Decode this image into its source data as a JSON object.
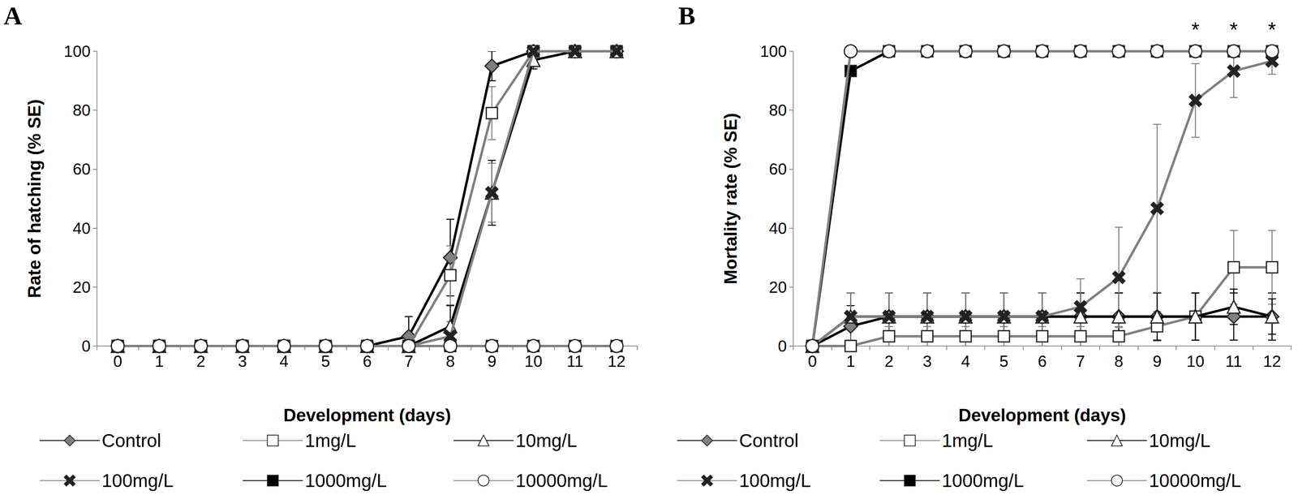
{
  "chart_data": [
    {
      "type": "line",
      "title": "A",
      "x_label": "Development (days)",
      "y_label": "Rate of hatching (% SE)",
      "categories": [
        "0",
        "1",
        "2",
        "3",
        "4",
        "5",
        "6",
        "7",
        "8",
        "9",
        "10",
        "11",
        "12"
      ],
      "ylim": [
        0,
        100
      ],
      "yticks": [
        0,
        20,
        40,
        60,
        80,
        100
      ],
      "grid": false,
      "series": [
        {
          "name": "Control",
          "color": "#000000",
          "marker": "diamond",
          "values": [
            0,
            0,
            0,
            0,
            0,
            0,
            0,
            3.3,
            30,
            95,
            100,
            100,
            100
          ],
          "errors": [
            0,
            0,
            0,
            0,
            0,
            0,
            0,
            6.7,
            13,
            5,
            0,
            0,
            0
          ]
        },
        {
          "name": "1mg/L",
          "color": "#808080",
          "marker": "square-open",
          "values": [
            0,
            0,
            0,
            0,
            0,
            0,
            0,
            0,
            24,
            79,
            100,
            100,
            100
          ],
          "errors": [
            0,
            0,
            0,
            0,
            0,
            0,
            0,
            0,
            10,
            9,
            0,
            0,
            0
          ]
        },
        {
          "name": "10mg/L",
          "color": "#000000",
          "marker": "triangle-open",
          "values": [
            0,
            0,
            0,
            0,
            0,
            0,
            0,
            0,
            6.7,
            52,
            97,
            100,
            100
          ],
          "errors": [
            0,
            0,
            0,
            0,
            0,
            0,
            0,
            0,
            7,
            11,
            3,
            0,
            0
          ]
        },
        {
          "name": "100mg/L",
          "color": "#808080",
          "marker": "x",
          "values": [
            0,
            0,
            0,
            0,
            0,
            0,
            0,
            0,
            3.3,
            52,
            100,
            100,
            100
          ],
          "errors": [
            0,
            0,
            0,
            0,
            0,
            0,
            0,
            0,
            5,
            10,
            0,
            0,
            0
          ]
        },
        {
          "name": "1000mg/L",
          "color": "#000000",
          "marker": "square",
          "values": [
            0,
            0,
            0,
            0,
            0,
            0,
            0,
            0,
            0,
            0,
            0,
            0,
            0
          ],
          "errors": [
            0,
            0,
            0,
            0,
            0,
            0,
            0,
            0,
            0,
            0,
            0,
            0,
            0
          ]
        },
        {
          "name": "10000mg/L",
          "color": "#808080",
          "marker": "circle-open",
          "values": [
            0,
            0,
            0,
            0,
            0,
            0,
            0,
            0,
            0,
            0,
            0,
            0,
            0
          ],
          "errors": [
            0,
            0,
            0,
            0,
            0,
            0,
            0,
            0,
            0,
            0,
            0,
            0,
            0
          ]
        }
      ]
    },
    {
      "type": "line",
      "title": "B",
      "x_label": "Development (days)",
      "y_label": "Mortality rate (% SE)",
      "categories": [
        "0",
        "1",
        "2",
        "3",
        "4",
        "5",
        "6",
        "7",
        "8",
        "9",
        "10",
        "11",
        "12"
      ],
      "ylim": [
        0,
        100
      ],
      "yticks": [
        0,
        20,
        40,
        60,
        80,
        100
      ],
      "grid": false,
      "annotations": [
        {
          "x": "10",
          "text": "*"
        },
        {
          "x": "11",
          "text": "*"
        },
        {
          "x": "12",
          "text": "*"
        }
      ],
      "series": [
        {
          "name": "Control",
          "color": "#000000",
          "marker": "diamond",
          "values": [
            0,
            6.7,
            10,
            10,
            10,
            10,
            10,
            10,
            10,
            10,
            10,
            10,
            10
          ],
          "errors": [
            0,
            7,
            8,
            8,
            8,
            8,
            8,
            8,
            8,
            8,
            8,
            8,
            8
          ]
        },
        {
          "name": "1mg/L",
          "color": "#808080",
          "marker": "square-open",
          "values": [
            0,
            0,
            3.3,
            3.3,
            3.3,
            3.3,
            3.3,
            3.3,
            3.3,
            6.7,
            10,
            26.7,
            26.7
          ],
          "errors": [
            0,
            0,
            3.3,
            3.3,
            3.3,
            3.3,
            3.3,
            3.3,
            3.3,
            5,
            8,
            12.5,
            12.5
          ]
        },
        {
          "name": "10mg/L",
          "color": "#000000",
          "marker": "triangle-open",
          "values": [
            0,
            10,
            10,
            10,
            10,
            10,
            10,
            10,
            10,
            10,
            10,
            13.3,
            10
          ],
          "errors": [
            0,
            8,
            8,
            8,
            8,
            8,
            8,
            8,
            8,
            8,
            8,
            6,
            6
          ]
        },
        {
          "name": "100mg/L",
          "color": "#808080",
          "marker": "x",
          "values": [
            0,
            10,
            10,
            10,
            10,
            10,
            10,
            13.3,
            23.3,
            46.7,
            83.3,
            93.3,
            96.7
          ],
          "errors": [
            0,
            8,
            8,
            8,
            8,
            8,
            8,
            9.5,
            17,
            28.5,
            12.5,
            9,
            4.5
          ]
        },
        {
          "name": "1000mg/L",
          "color": "#000000",
          "marker": "square",
          "values": [
            0,
            93.3,
            100,
            100,
            100,
            100,
            100,
            100,
            100,
            100,
            100,
            100,
            100
          ],
          "errors": [
            0,
            0,
            0,
            0,
            0,
            0,
            0,
            0,
            0,
            0,
            0,
            0,
            0
          ]
        },
        {
          "name": "10000mg/L",
          "color": "#808080",
          "marker": "circle-open",
          "values": [
            0,
            100,
            100,
            100,
            100,
            100,
            100,
            100,
            100,
            100,
            100,
            100,
            100
          ],
          "errors": [
            0,
            0,
            0,
            0,
            0,
            0,
            0,
            0,
            0,
            0,
            0,
            0,
            0
          ]
        }
      ]
    }
  ]
}
